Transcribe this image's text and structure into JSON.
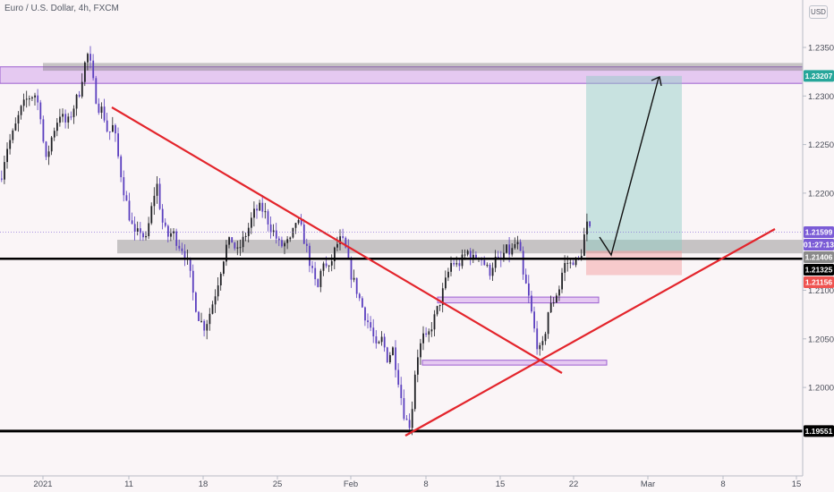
{
  "header": {
    "symbol_title": "Euro / U.S. Dollar, 4h, FXCM",
    "currency": "USD"
  },
  "colors": {
    "background": "#faf5f7",
    "bull_candle": "#1f2024",
    "bear_candle": "#5b3fbf",
    "trendline": "#e3242b",
    "level_line": "#000000",
    "zone_grey": "rgba(120,120,120,0.40)",
    "zone_purple": "rgba(190,120,230,0.35)",
    "target_zone": "rgba(140,205,195,0.45)",
    "stop_zone": "rgba(245,150,150,0.45)",
    "arrow": "#111111"
  },
  "chart_data": {
    "type": "candlestick",
    "symbol": "EURUSD",
    "timeframe": "4h",
    "y_axis": {
      "range": [
        1.1945,
        1.2374
      ],
      "ticks": [
        "1.23500",
        "1.23000",
        "1.22500",
        "1.22000",
        "1.21500",
        "1.21000",
        "1.20500",
        "1.20000"
      ],
      "price_labels": [
        {
          "text": "1.23207",
          "bg": "#26a69a",
          "fg": "#ffffff",
          "price": 1.23207
        },
        {
          "text": "1.21599",
          "bg": "#7b5cd6",
          "fg": "#ffffff",
          "price": 1.21599
        },
        {
          "text": "01:27:13",
          "bg": "#7b5cd6",
          "fg": "#ffffff",
          "price": 1.21505
        },
        {
          "text": "1.21406",
          "bg": "#8a8a8a",
          "fg": "#ffffff",
          "price": 1.21406
        },
        {
          "text": "1.21325",
          "bg": "#000000",
          "fg": "#ffffff",
          "price": 1.21325
        },
        {
          "text": "1.21156",
          "bg": "#ef5350",
          "fg": "#ffffff",
          "price": 1.21156
        },
        {
          "text": "1.19551",
          "bg": "#000000",
          "fg": "#ffffff",
          "price": 1.19551
        }
      ]
    },
    "x_axis": {
      "ticks": [
        "2021",
        "11",
        "18",
        "25",
        "Feb",
        "8",
        "15",
        "22",
        "Mar",
        "8",
        "15"
      ]
    },
    "path": [
      [
        0,
        1.2215
      ],
      [
        6,
        1.2245
      ],
      [
        14,
        1.2262
      ],
      [
        22,
        1.2285
      ],
      [
        30,
        1.2298
      ],
      [
        38,
        1.2302
      ],
      [
        44,
        1.2285
      ],
      [
        50,
        1.223
      ],
      [
        58,
        1.2262
      ],
      [
        66,
        1.2282
      ],
      [
        74,
        1.227
      ],
      [
        82,
        1.229
      ],
      [
        88,
        1.2305
      ],
      [
        93,
        1.233
      ],
      [
        98,
        1.2345
      ],
      [
        103,
        1.2315
      ],
      [
        108,
        1.229
      ],
      [
        114,
        1.2285
      ],
      [
        120,
        1.226
      ],
      [
        126,
        1.227
      ],
      [
        132,
        1.2232
      ],
      [
        138,
        1.22
      ],
      [
        144,
        1.2175
      ],
      [
        150,
        1.2155
      ],
      [
        156,
        1.2162
      ],
      [
        162,
        1.215
      ],
      [
        168,
        1.2182
      ],
      [
        174,
        1.2212
      ],
      [
        180,
        1.2172
      ],
      [
        186,
        1.2155
      ],
      [
        192,
        1.216
      ],
      [
        198,
        1.2148
      ],
      [
        204,
        1.2142
      ],
      [
        210,
        1.2125
      ],
      [
        216,
        1.209
      ],
      [
        222,
        1.207
      ],
      [
        228,
        1.2062
      ],
      [
        234,
        1.2078
      ],
      [
        240,
        1.2098
      ],
      [
        246,
        1.2122
      ],
      [
        252,
        1.2145
      ],
      [
        258,
        1.2152
      ],
      [
        264,
        1.2138
      ],
      [
        270,
        1.215
      ],
      [
        276,
        1.2162
      ],
      [
        282,
        1.2178
      ],
      [
        288,
        1.2185
      ],
      [
        294,
        1.2182
      ],
      [
        300,
        1.2168
      ],
      [
        306,
        1.2158
      ],
      [
        312,
        1.2145
      ],
      [
        318,
        1.2148
      ],
      [
        324,
        1.215
      ],
      [
        330,
        1.2172
      ],
      [
        336,
        1.2162
      ],
      [
        342,
        1.2142
      ],
      [
        348,
        1.2118
      ],
      [
        354,
        1.21
      ],
      [
        360,
        1.2132
      ],
      [
        366,
        1.2118
      ],
      [
        372,
        1.2138
      ],
      [
        378,
        1.2152
      ],
      [
        384,
        1.2148
      ],
      [
        390,
        1.212
      ],
      [
        396,
        1.2105
      ],
      [
        402,
        1.2088
      ],
      [
        408,
        1.2072
      ],
      [
        414,
        1.206
      ],
      [
        420,
        1.2038
      ],
      [
        426,
        1.205
      ],
      [
        432,
        1.203
      ],
      [
        438,
        1.204
      ],
      [
        444,
        1.201
      ],
      [
        450,
        1.1975
      ],
      [
        456,
        1.1958
      ],
      [
        460,
        1.1982
      ],
      [
        464,
        1.2028
      ],
      [
        468,
        1.204
      ],
      [
        472,
        1.2052
      ],
      [
        476,
        1.2048
      ],
      [
        480,
        1.206
      ],
      [
        486,
        1.2075
      ],
      [
        492,
        1.2092
      ],
      [
        498,
        1.2112
      ],
      [
        504,
        1.213
      ],
      [
        510,
        1.2125
      ],
      [
        516,
        1.2132
      ],
      [
        522,
        1.214
      ],
      [
        528,
        1.2132
      ],
      [
        534,
        1.2138
      ],
      [
        540,
        1.2128
      ],
      [
        546,
        1.2118
      ],
      [
        552,
        1.2132
      ],
      [
        558,
        1.2128
      ],
      [
        564,
        1.2142
      ],
      [
        570,
        1.2138
      ],
      [
        576,
        1.215
      ],
      [
        580,
        1.214
      ],
      [
        584,
        1.2112
      ],
      [
        588,
        1.2102
      ],
      [
        592,
        1.2082
      ],
      [
        596,
        1.206
      ],
      [
        600,
        1.2042
      ],
      [
        604,
        1.2035
      ],
      [
        608,
        1.2055
      ],
      [
        612,
        1.208
      ],
      [
        616,
        1.2085
      ],
      [
        620,
        1.2095
      ],
      [
        624,
        1.2102
      ],
      [
        628,
        1.2122
      ],
      [
        632,
        1.213
      ],
      [
        636,
        1.2126
      ],
      [
        640,
        1.2132
      ],
      [
        644,
        1.2128
      ],
      [
        648,
        1.2135
      ],
      [
        652,
        1.2156
      ],
      [
        656,
        1.217
      ],
      [
        658,
        1.216
      ],
      [
        660,
        1.2163
      ]
    ],
    "annotations": {
      "horizontal_lines": [
        1.21325,
        1.19551
      ],
      "grey_zones": [
        [
          1.2326,
          1.2334
        ],
        [
          1.2138,
          1.2152
        ]
      ],
      "purple_zones": [
        [
          1.2313,
          1.233
        ],
        [
          1.2087,
          1.2093
        ],
        [
          1.2023,
          1.2028
        ]
      ],
      "position_entry": 1.21406,
      "position_target": 1.23207,
      "position_stop": 1.21156
    }
  }
}
